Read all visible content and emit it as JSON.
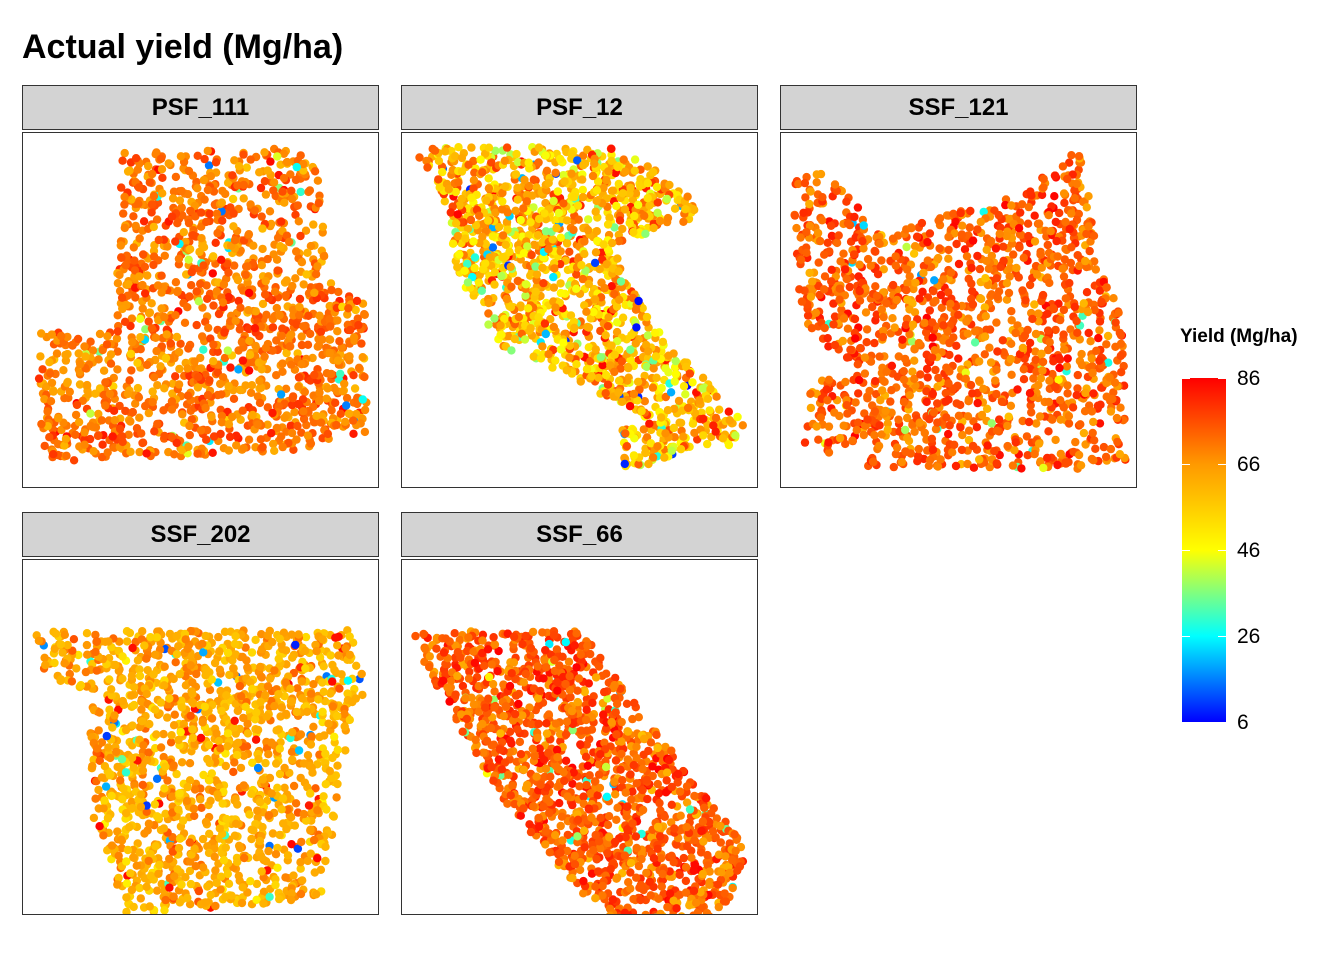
{
  "title": "Actual yield (Mg/ha)",
  "chart_data": {
    "type": "heatmap",
    "title": "Actual yield (Mg/ha)",
    "legend": {
      "title": "Yield (Mg/ha)",
      "placement": "right",
      "range": [
        6,
        86
      ],
      "ticks": [
        6,
        26,
        46,
        66,
        86
      ],
      "colors": [
        "#0000ff",
        "#00ffff",
        "#ffff00",
        "#ff9900",
        "#ff0000"
      ]
    },
    "grid": false,
    "panels": [
      {
        "label": "PSF_111",
        "typical_yield": 70,
        "spread": 6
      },
      {
        "label": "PSF_12",
        "typical_yield": 60,
        "spread": 14
      },
      {
        "label": "SSF_121",
        "typical_yield": 73,
        "spread": 6
      },
      {
        "label": "SSF_202",
        "typical_yield": 63,
        "spread": 6
      },
      {
        "label": "SSF_66",
        "typical_yield": 74,
        "spread": 6
      }
    ]
  }
}
